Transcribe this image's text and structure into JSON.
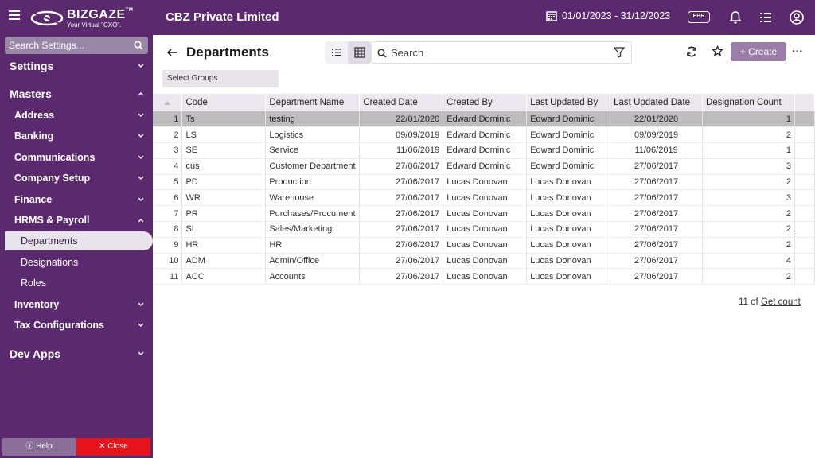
{
  "header": {
    "logo_text": "BIZGAZE",
    "logo_tm": "TM",
    "logo_tagline": "Your Virtual \"CXO\".",
    "company": "CBZ Private Limited",
    "date_range": "01/01/2023 - 31/12/2023",
    "ebr_label": "EBR"
  },
  "sidebar": {
    "search_placeholder": "Search Settings...",
    "settings": "Settings",
    "masters": "Masters",
    "items": [
      "Address",
      "Banking",
      "Communications",
      "Company Setup",
      "Finance",
      "HRMS & Payroll"
    ],
    "hrms_children": [
      "Departments",
      "Designations",
      "Roles"
    ],
    "items_after": [
      "Inventory",
      "Tax Configurations"
    ],
    "dev_apps": "Dev Apps",
    "help_label": "Help",
    "close_label": "Close"
  },
  "page": {
    "title": "Departments",
    "search_placeholder": "Search",
    "create_label": "Create",
    "more_label": "···",
    "select_groups": "Select Groups"
  },
  "table": {
    "columns": [
      "Code",
      "Department Name",
      "Created Date",
      "Created By",
      "Last Updated By",
      "Last Updated Date",
      "Designation Count"
    ],
    "rows": [
      {
        "n": "1",
        "code": "Ts",
        "name": "testing",
        "created": "22/01/2020",
        "by": "Edward Dominic",
        "upd_by": "Edward Dominic",
        "upd_date": "22/01/2020",
        "count": "1"
      },
      {
        "n": "2",
        "code": "LS",
        "name": "Logistics",
        "created": "09/09/2019",
        "by": "Edward Dominic",
        "upd_by": "Edward Dominic",
        "upd_date": "09/09/2019",
        "count": "2"
      },
      {
        "n": "3",
        "code": "SE",
        "name": "Service",
        "created": "11/06/2019",
        "by": "Edward Dominic",
        "upd_by": "Edward Dominic",
        "upd_date": "11/06/2019",
        "count": "1"
      },
      {
        "n": "4",
        "code": "cus",
        "name": "Customer Department",
        "created": "27/06/2017",
        "by": "Edward Dominic",
        "upd_by": "Edward Dominic",
        "upd_date": "27/06/2017",
        "count": "3"
      },
      {
        "n": "5",
        "code": "PD",
        "name": "Production",
        "created": "27/06/2017",
        "by": "Lucas Donovan",
        "upd_by": "Lucas Donovan",
        "upd_date": "27/06/2017",
        "count": "2"
      },
      {
        "n": "6",
        "code": "WR",
        "name": "Warehouse",
        "created": "27/06/2017",
        "by": "Lucas Donovan",
        "upd_by": "Lucas Donovan",
        "upd_date": "27/06/2017",
        "count": "3"
      },
      {
        "n": "7",
        "code": "PR",
        "name": "Purchases/Procument",
        "created": "27/06/2017",
        "by": "Lucas Donovan",
        "upd_by": "Lucas Donovan",
        "upd_date": "27/06/2017",
        "count": "2"
      },
      {
        "n": "8",
        "code": "SL",
        "name": "Sales/Marketing",
        "created": "27/06/2017",
        "by": "Lucas Donovan",
        "upd_by": "Lucas Donovan",
        "upd_date": "27/06/2017",
        "count": "2"
      },
      {
        "n": "9",
        "code": "HR",
        "name": "HR",
        "created": "27/06/2017",
        "by": "Lucas Donovan",
        "upd_by": "Lucas Donovan",
        "upd_date": "27/06/2017",
        "count": "2"
      },
      {
        "n": "10",
        "code": "ADM",
        "name": "Admin/Office",
        "created": "27/06/2017",
        "by": "Lucas Donovan",
        "upd_by": "Lucas Donovan",
        "upd_date": "27/06/2017",
        "count": "4"
      },
      {
        "n": "11",
        "code": "ACC",
        "name": "Accounts",
        "created": "27/06/2017",
        "by": "Lucas Donovan",
        "upd_by": "Lucas Donovan",
        "upd_date": "27/06/2017",
        "count": "2"
      }
    ]
  },
  "footer": {
    "count_text": "11 of",
    "get_count": "Get count"
  },
  "colors": {
    "brand": "#5b2a6e",
    "accent": "#9b7ea8",
    "close": "#e8141c"
  }
}
